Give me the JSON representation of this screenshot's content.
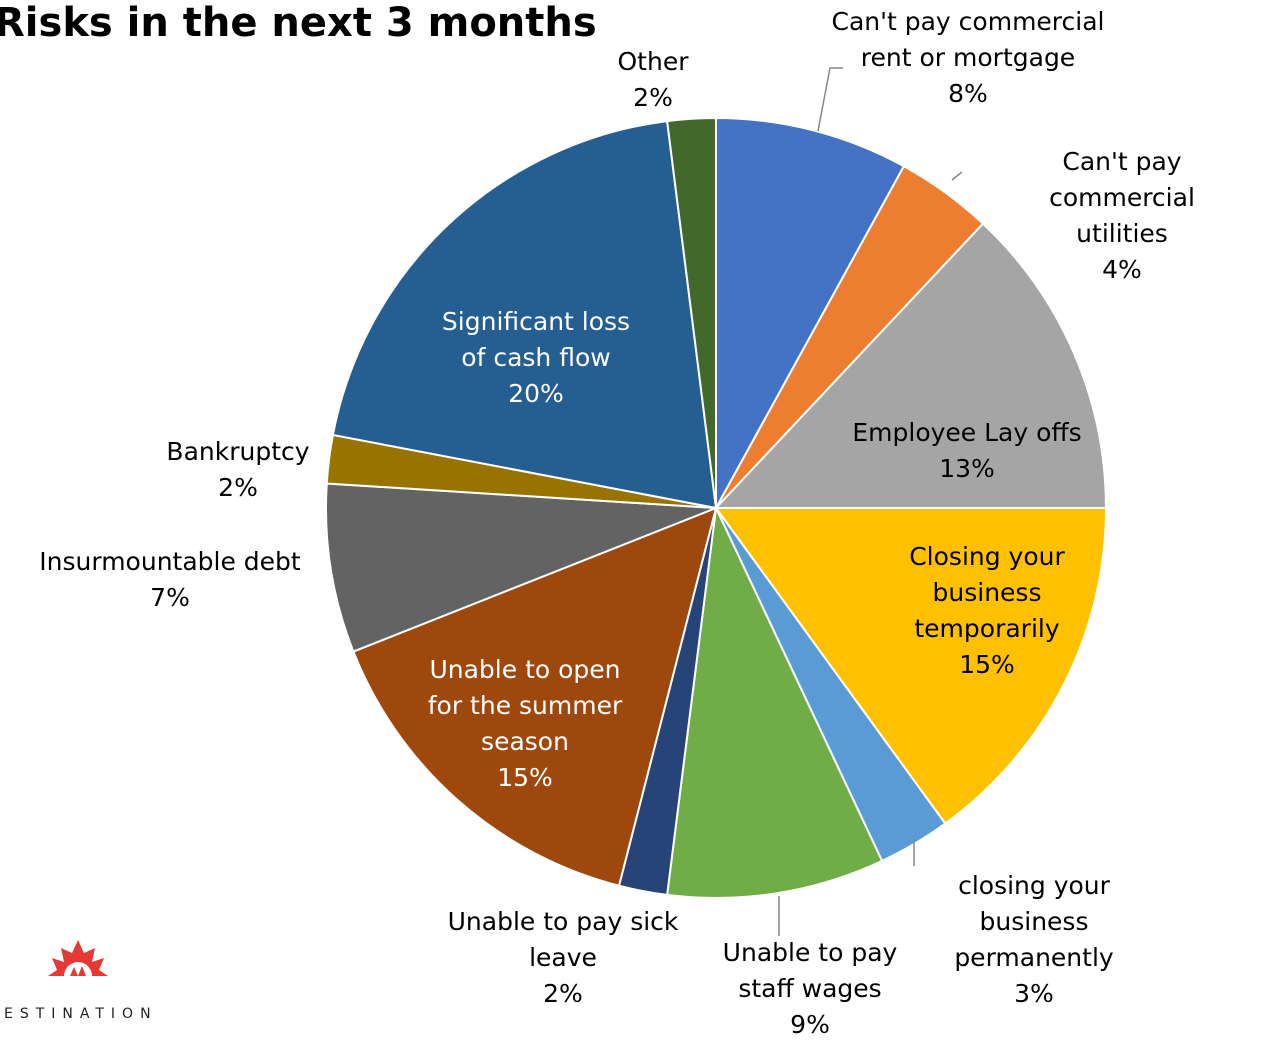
{
  "chart_data": {
    "type": "pie",
    "title": "Risks in the next 3 months",
    "categories": [
      "Can't pay commercial\nrent or mortgage",
      "Can't pay commercial\nutilities",
      "Employee Lay offs",
      "Closing your\nbusiness\ntemporarily",
      "closing your business\npermanently",
      "Unable to pay\nstaff wages",
      "Unable to pay sick\nleave",
      "Unable to open\nfor the summer\nseason",
      "Insurmountable debt",
      "Bankruptcy",
      "Significant loss\nof cash flow",
      "Other"
    ],
    "values": [
      8,
      4,
      13,
      15,
      3,
      9,
      2,
      15,
      7,
      2,
      20,
      2
    ],
    "value_labels": [
      "8%",
      "4%",
      "13%",
      "15%",
      "3%",
      "9%",
      "2%",
      "15%",
      "7%",
      "2%",
      "20%",
      "2%"
    ],
    "colors": [
      "#4472C4",
      "#ED7D31",
      "#A5A5A5",
      "#FFC000",
      "#5B9BD5",
      "#70AD47",
      "#264478",
      "#9E480E",
      "#636363",
      "#997300",
      "#255E91",
      "#43682B"
    ],
    "logo_text": "ESTINATION"
  }
}
